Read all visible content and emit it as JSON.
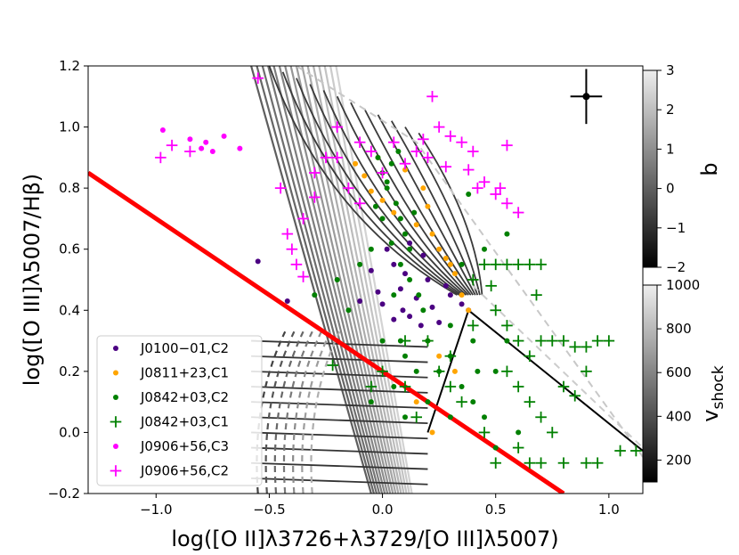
{
  "chart_data": {
    "type": "scatter",
    "title": "",
    "xlabel": "log([O II]λ3726+λ3729/[O III]λ5007)",
    "ylabel": "log([O III]λ5007/Hβ)",
    "xlim": [
      -1.3,
      1.15
    ],
    "ylim": [
      -0.2,
      1.2
    ],
    "xticks": [
      "−1.0",
      "−0.5",
      "0.0",
      "0.5",
      "1.0"
    ],
    "xtick_values": [
      -1.0,
      -0.5,
      0.0,
      0.5,
      1.0
    ],
    "yticks": [
      "−0.2",
      "0.0",
      "0.2",
      "0.4",
      "0.6",
      "0.8",
      "1.0",
      "1.2"
    ],
    "ytick_values": [
      -0.2,
      0.0,
      0.2,
      0.4,
      0.6,
      0.8,
      1.0,
      1.2
    ],
    "legend_position": "lower-left",
    "dividing_line": {
      "color": "#ff0000",
      "points": [
        [
          -1.3,
          0.85
        ],
        [
          0.8,
          -0.2
        ]
      ]
    },
    "error_bar": {
      "x": 0.9,
      "y": 1.1,
      "xerr": 0.07,
      "yerr": 0.09
    },
    "series": [
      {
        "name": "J0100−01,C2",
        "marker": "dot",
        "color": "#4b0082",
        "points": [
          [
            -0.55,
            0.56
          ],
          [
            -0.42,
            0.43
          ],
          [
            -0.1,
            0.43
          ],
          [
            -0.05,
            0.53
          ],
          [
            0.0,
            0.42
          ],
          [
            0.02,
            0.6
          ],
          [
            0.05,
            0.37
          ],
          [
            0.08,
            0.47
          ],
          [
            0.1,
            0.52
          ],
          [
            0.12,
            0.38
          ],
          [
            0.15,
            0.44
          ],
          [
            0.18,
            0.58
          ],
          [
            0.2,
            0.5
          ],
          [
            0.22,
            0.41
          ],
          [
            0.25,
            0.36
          ],
          [
            0.3,
            0.45
          ],
          [
            0.35,
            0.42
          ],
          [
            0.38,
            0.4
          ],
          [
            0.05,
            0.55
          ],
          [
            0.12,
            0.62
          ],
          [
            -0.02,
            0.46
          ],
          [
            0.17,
            0.35
          ],
          [
            0.28,
            0.48
          ],
          [
            0.09,
            0.4
          ]
        ]
      },
      {
        "name": "J0811+23,C1",
        "marker": "dot",
        "color": "#ffa500",
        "points": [
          [
            -0.12,
            0.88
          ],
          [
            -0.08,
            0.84
          ],
          [
            -0.05,
            0.79
          ],
          [
            -0.02,
            0.9
          ],
          [
            0.0,
            0.76
          ],
          [
            0.05,
            0.72
          ],
          [
            0.1,
            0.86
          ],
          [
            0.15,
            0.68
          ],
          [
            0.18,
            0.8
          ],
          [
            0.2,
            0.74
          ],
          [
            0.22,
            0.65
          ],
          [
            0.25,
            0.6
          ],
          [
            0.28,
            0.57
          ],
          [
            0.3,
            0.55
          ],
          [
            0.32,
            0.52
          ],
          [
            0.35,
            0.45
          ],
          [
            0.38,
            0.4
          ],
          [
            0.2,
            0.3
          ],
          [
            0.25,
            0.25
          ],
          [
            0.15,
            0.1
          ],
          [
            0.22,
            0.0
          ],
          [
            0.32,
            0.2
          ]
        ]
      },
      {
        "name": "J0842+03,C2",
        "marker": "dot",
        "color": "#008000",
        "points": [
          [
            -0.02,
            0.9
          ],
          [
            0.0,
            0.85
          ],
          [
            0.02,
            0.8
          ],
          [
            0.04,
            0.88
          ],
          [
            0.06,
            0.75
          ],
          [
            0.08,
            0.7
          ],
          [
            0.1,
            0.65
          ],
          [
            0.12,
            0.6
          ],
          [
            0.0,
            0.7
          ],
          [
            0.04,
            0.62
          ],
          [
            0.08,
            0.55
          ],
          [
            0.12,
            0.5
          ],
          [
            0.16,
            0.45
          ],
          [
            -0.05,
            0.6
          ],
          [
            -0.1,
            0.55
          ],
          [
            -0.2,
            0.5
          ],
          [
            -0.3,
            0.45
          ],
          [
            0.2,
            0.3
          ],
          [
            0.25,
            0.2
          ],
          [
            0.3,
            0.25
          ],
          [
            0.35,
            0.15
          ],
          [
            0.4,
            0.1
          ],
          [
            0.45,
            0.05
          ],
          [
            0.15,
            0.2
          ],
          [
            0.1,
            0.25
          ],
          [
            0.05,
            0.15
          ],
          [
            0.2,
            0.1
          ],
          [
            0.3,
            0.05
          ],
          [
            0.5,
            0.2
          ],
          [
            0.55,
            0.3
          ],
          [
            0.6,
            0.0
          ],
          [
            0.5,
            -0.05
          ],
          [
            0.4,
            0.3
          ],
          [
            0.35,
            0.55
          ],
          [
            0.45,
            0.6
          ],
          [
            0.55,
            0.65
          ],
          [
            0.38,
            0.78
          ],
          [
            0.0,
            0.3
          ],
          [
            -0.05,
            0.1
          ],
          [
            0.1,
            0.05
          ],
          [
            0.05,
            0.45
          ],
          [
            0.02,
            0.82
          ],
          [
            0.07,
            0.92
          ],
          [
            -0.03,
            0.74
          ],
          [
            0.14,
            0.72
          ],
          [
            0.3,
            0.35
          ],
          [
            0.42,
            0.2
          ],
          [
            0.18,
            0.4
          ],
          [
            0.08,
            0.3
          ],
          [
            -0.15,
            0.4
          ]
        ]
      },
      {
        "name": "J0842+03,C1",
        "marker": "plus",
        "color": "#008000",
        "points": [
          [
            0.4,
            0.5
          ],
          [
            0.45,
            0.55
          ],
          [
            0.5,
            0.55
          ],
          [
            0.55,
            0.55
          ],
          [
            0.6,
            0.55
          ],
          [
            0.65,
            0.55
          ],
          [
            0.7,
            0.55
          ],
          [
            0.5,
            0.4
          ],
          [
            0.55,
            0.35
          ],
          [
            0.6,
            0.3
          ],
          [
            0.65,
            0.25
          ],
          [
            0.7,
            0.3
          ],
          [
            0.75,
            0.3
          ],
          [
            0.8,
            0.3
          ],
          [
            0.85,
            0.28
          ],
          [
            0.9,
            0.28
          ],
          [
            0.95,
            0.3
          ],
          [
            1.0,
            0.3
          ],
          [
            0.55,
            0.2
          ],
          [
            0.6,
            0.15
          ],
          [
            0.65,
            0.1
          ],
          [
            0.7,
            0.05
          ],
          [
            0.75,
            0.0
          ],
          [
            0.6,
            -0.05
          ],
          [
            0.65,
            -0.1
          ],
          [
            0.7,
            -0.1
          ],
          [
            0.8,
            -0.1
          ],
          [
            0.9,
            -0.1
          ],
          [
            0.95,
            -0.1
          ],
          [
            1.05,
            -0.06
          ],
          [
            1.12,
            -0.06
          ],
          [
            0.3,
            0.25
          ],
          [
            0.25,
            0.2
          ],
          [
            0.2,
            0.3
          ],
          [
            0.1,
            0.3
          ],
          [
            0.0,
            0.2
          ],
          [
            -0.05,
            0.15
          ],
          [
            0.15,
            0.05
          ],
          [
            0.35,
            0.1
          ],
          [
            0.45,
            0.0
          ],
          [
            0.5,
            -0.1
          ],
          [
            0.4,
            0.35
          ],
          [
            -0.22,
            0.22
          ],
          [
            0.8,
            0.15
          ],
          [
            0.85,
            0.12
          ],
          [
            0.48,
            0.48
          ],
          [
            0.68,
            0.45
          ],
          [
            0.9,
            0.2
          ],
          [
            0.1,
            0.15
          ],
          [
            0.3,
            0.15
          ]
        ]
      },
      {
        "name": "J0906+56,C3",
        "marker": "dot",
        "color": "#ff00ff",
        "points": [
          [
            -0.97,
            0.99
          ],
          [
            -0.85,
            0.96
          ],
          [
            -0.8,
            0.93
          ],
          [
            -0.78,
            0.95
          ],
          [
            -0.75,
            0.92
          ],
          [
            -0.7,
            0.97
          ],
          [
            -0.63,
            0.93
          ]
        ]
      },
      {
        "name": "J0906+56,C2",
        "marker": "plus",
        "color": "#ff00ff",
        "points": [
          [
            -0.98,
            0.9
          ],
          [
            -0.93,
            0.94
          ],
          [
            -0.85,
            0.92
          ],
          [
            -0.55,
            1.16
          ],
          [
            -0.45,
            0.8
          ],
          [
            -0.42,
            0.65
          ],
          [
            -0.4,
            0.6
          ],
          [
            -0.38,
            0.55
          ],
          [
            -0.35,
            0.51
          ],
          [
            -0.3,
            0.85
          ],
          [
            -0.25,
            0.9
          ],
          [
            -0.2,
            1.0
          ],
          [
            -0.15,
            0.8
          ],
          [
            -0.1,
            0.95
          ],
          [
            -0.05,
            0.92
          ],
          [
            0.0,
            0.85
          ],
          [
            0.05,
            0.95
          ],
          [
            0.1,
            0.88
          ],
          [
            0.15,
            0.92
          ],
          [
            0.2,
            0.9
          ],
          [
            0.25,
            1.0
          ],
          [
            0.22,
            1.1
          ],
          [
            0.28,
            0.87
          ],
          [
            0.35,
            0.95
          ],
          [
            0.38,
            0.86
          ],
          [
            0.4,
            0.92
          ],
          [
            0.45,
            0.82
          ],
          [
            0.5,
            0.78
          ],
          [
            0.52,
            0.8
          ],
          [
            0.55,
            0.75
          ],
          [
            0.6,
            0.72
          ],
          [
            0.55,
            0.94
          ],
          [
            -0.3,
            0.77
          ],
          [
            -0.35,
            0.7
          ],
          [
            0.3,
            0.97
          ],
          [
            0.18,
            0.96
          ],
          [
            0.42,
            0.8
          ],
          [
            -0.2,
            0.9
          ],
          [
            -0.1,
            0.75
          ]
        ]
      }
    ],
    "colorbars": [
      {
        "label": "b",
        "min": -2,
        "max": 3,
        "ticks": [
          3,
          2,
          1,
          0,
          -1,
          -2
        ],
        "tick_labels": [
          "3",
          "2",
          "1",
          "0",
          "−1",
          "−2"
        ]
      },
      {
        "label": "v",
        "label_sub": "shock",
        "min": 100,
        "max": 1000,
        "ticks": [
          1000,
          800,
          600,
          400,
          200
        ],
        "tick_labels": [
          "1000",
          "800",
          "600",
          "400",
          "200"
        ]
      }
    ]
  }
}
